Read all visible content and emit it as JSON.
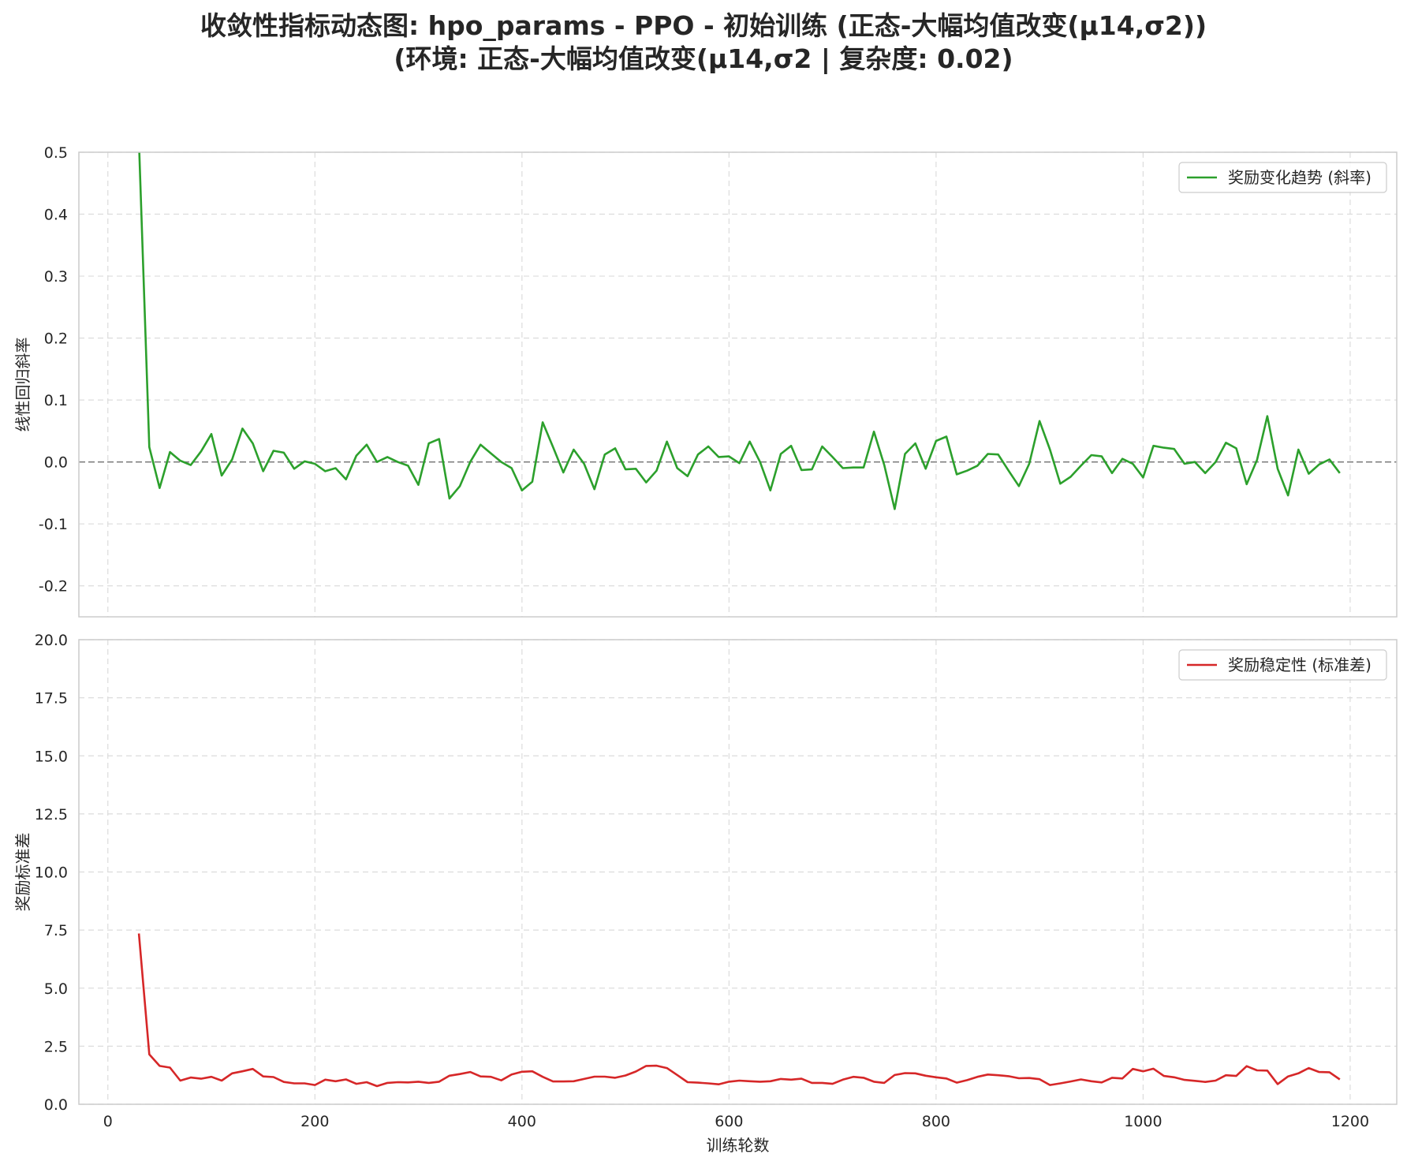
{
  "title_line1": "收敛性指标动态图: hpo_params - PPO - 初始训练 (正态-大幅均值改变(μ14,σ2))",
  "title_line2": "(环境: 正态-大幅均值改变(μ14,σ2 | 复杂度: 0.02)",
  "chart_data": [
    {
      "type": "line",
      "ylabel": "线性回归斜率",
      "xlim": [
        -28,
        1245
      ],
      "ylim": [
        -0.25,
        0.5
      ],
      "yticks": [
        -0.2,
        -0.1,
        0.0,
        0.1,
        0.2,
        0.3,
        0.4,
        0.5
      ],
      "ytick_labels": [
        "-0.2",
        "-0.1",
        "0.0",
        "0.1",
        "0.2",
        "0.3",
        "0.4",
        "0.5"
      ],
      "xticks": [
        0,
        200,
        400,
        600,
        800,
        1000,
        1200
      ],
      "grid": true,
      "reference_line_y": 0,
      "legend": "top-right",
      "series": [
        {
          "name": "奖励变化趋势 (斜率)",
          "color": "#2ca02c",
          "x": [
            30,
            40,
            50,
            60,
            70,
            80,
            90,
            100,
            110,
            120,
            130,
            140,
            150,
            160,
            170,
            180,
            190,
            200,
            210,
            220,
            230,
            240,
            250,
            260,
            270,
            280,
            290,
            300,
            310,
            320,
            330,
            340,
            350,
            360,
            370,
            380,
            390,
            400,
            410,
            420,
            430,
            440,
            450,
            460,
            470,
            480,
            490,
            500,
            510,
            520,
            530,
            540,
            550,
            560,
            570,
            580,
            590,
            600,
            610,
            620,
            630,
            640,
            650,
            660,
            670,
            680,
            690,
            700,
            710,
            720,
            730,
            740,
            750,
            760,
            770,
            780,
            790,
            800,
            810,
            820,
            830,
            840,
            850,
            860,
            870,
            880,
            890,
            900,
            910,
            920,
            930,
            940,
            950,
            960,
            970,
            980,
            990,
            1000,
            1010,
            1020,
            1030,
            1040,
            1050,
            1060,
            1070,
            1080,
            1090,
            1100,
            1110,
            1120,
            1130,
            1140,
            1150,
            1160,
            1170,
            1180,
            1190
          ],
          "y": [
            0.52,
            0.024,
            -0.042,
            0.016,
            0.002,
            -0.005,
            0.017,
            0.045,
            -0.022,
            0.004,
            0.054,
            0.03,
            -0.015,
            0.018,
            0.015,
            -0.011,
            0.001,
            -0.003,
            -0.015,
            -0.01,
            -0.028,
            0.01,
            0.028,
            0.0,
            0.008,
            0.0,
            -0.006,
            -0.037,
            0.03,
            0.037,
            -0.059,
            -0.039,
            0.0,
            0.028,
            0.014,
            0.0,
            -0.01,
            -0.046,
            -0.032,
            0.064,
            0.024,
            -0.017,
            0.02,
            -0.003,
            -0.044,
            0.012,
            0.022,
            -0.012,
            -0.011,
            -0.033,
            -0.014,
            0.033,
            -0.01,
            -0.023,
            0.012,
            0.025,
            0.008,
            0.009,
            -0.002,
            0.033,
            0.0,
            -0.046,
            0.013,
            0.026,
            -0.013,
            -0.012,
            0.025,
            0.008,
            -0.01,
            -0.009,
            -0.009,
            0.049,
            -0.005,
            -0.076,
            0.013,
            0.03,
            -0.011,
            0.034,
            0.041,
            -0.02,
            -0.014,
            -0.006,
            0.013,
            0.012,
            -0.014,
            -0.039,
            -0.003,
            0.066,
            0.02,
            -0.035,
            -0.024,
            -0.006,
            0.011,
            0.009,
            -0.018,
            0.005,
            -0.003,
            -0.025,
            0.026,
            0.023,
            0.021,
            -0.003,
            0.0,
            -0.018,
            0.0,
            0.031,
            0.022,
            -0.036,
            0.003,
            0.074,
            -0.011,
            -0.054,
            0.02,
            -0.019,
            -0.004,
            0.004,
            -0.018
          ]
        }
      ]
    },
    {
      "type": "line",
      "xlabel": "训练轮数",
      "ylabel": "奖励标准差",
      "xlim": [
        -28,
        1245
      ],
      "ylim": [
        0,
        20
      ],
      "yticks": [
        0,
        2.5,
        5,
        7.5,
        10,
        12.5,
        15,
        17.5,
        20
      ],
      "ytick_labels": [
        "0.0",
        "2.5",
        "5.0",
        "7.5",
        "10.0",
        "12.5",
        "15.0",
        "17.5",
        "20.0"
      ],
      "xticks": [
        0,
        200,
        400,
        600,
        800,
        1000,
        1200
      ],
      "xtick_labels": [
        "0",
        "200",
        "400",
        "600",
        "800",
        "1000",
        "1200"
      ],
      "grid": true,
      "legend": "top-right",
      "series": [
        {
          "name": "奖励稳定性 (标准差)",
          "color": "#d62728",
          "x": [
            30,
            40,
            50,
            60,
            70,
            80,
            90,
            100,
            110,
            120,
            130,
            140,
            150,
            160,
            170,
            180,
            190,
            200,
            210,
            220,
            230,
            240,
            250,
            260,
            270,
            280,
            290,
            300,
            310,
            320,
            330,
            340,
            350,
            360,
            370,
            380,
            390,
            400,
            410,
            420,
            430,
            440,
            450,
            460,
            470,
            480,
            490,
            500,
            510,
            520,
            530,
            540,
            550,
            560,
            570,
            580,
            590,
            600,
            610,
            620,
            630,
            640,
            650,
            660,
            670,
            680,
            690,
            700,
            710,
            720,
            730,
            740,
            750,
            760,
            770,
            780,
            790,
            800,
            810,
            820,
            830,
            840,
            850,
            860,
            870,
            880,
            890,
            900,
            910,
            920,
            930,
            940,
            950,
            960,
            970,
            980,
            990,
            1000,
            1010,
            1020,
            1030,
            1040,
            1050,
            1060,
            1070,
            1080,
            1090,
            1100,
            1110,
            1120,
            1130,
            1140,
            1150,
            1160,
            1170,
            1180,
            1190
          ],
          "y": [
            7.35,
            2.15,
            1.65,
            1.58,
            1.02,
            1.15,
            1.1,
            1.18,
            1.02,
            1.33,
            1.42,
            1.52,
            1.2,
            1.17,
            0.96,
            0.9,
            0.9,
            0.83,
            1.06,
            0.99,
            1.07,
            0.88,
            0.95,
            0.78,
            0.92,
            0.95,
            0.94,
            0.97,
            0.92,
            0.97,
            1.23,
            1.3,
            1.39,
            1.2,
            1.18,
            1.03,
            1.28,
            1.4,
            1.42,
            1.18,
            0.98,
            0.98,
            0.99,
            1.09,
            1.19,
            1.19,
            1.14,
            1.24,
            1.41,
            1.65,
            1.66,
            1.56,
            1.26,
            0.95,
            0.93,
            0.9,
            0.86,
            0.97,
            1.02,
            0.99,
            0.97,
            0.99,
            1.09,
            1.06,
            1.1,
            0.92,
            0.92,
            0.88,
            1.06,
            1.18,
            1.14,
            0.97,
            0.92,
            1.26,
            1.34,
            1.33,
            1.23,
            1.16,
            1.11,
            0.93,
            1.04,
            1.18,
            1.28,
            1.25,
            1.21,
            1.12,
            1.13,
            1.08,
            0.83,
            0.9,
            0.98,
            1.07,
            0.99,
            0.94,
            1.14,
            1.11,
            1.52,
            1.42,
            1.53,
            1.22,
            1.16,
            1.05,
            1.01,
            0.96,
            1.02,
            1.25,
            1.22,
            1.64,
            1.46,
            1.45,
            0.87,
            1.2,
            1.33,
            1.56,
            1.39,
            1.38,
            1.07
          ]
        }
      ]
    }
  ]
}
